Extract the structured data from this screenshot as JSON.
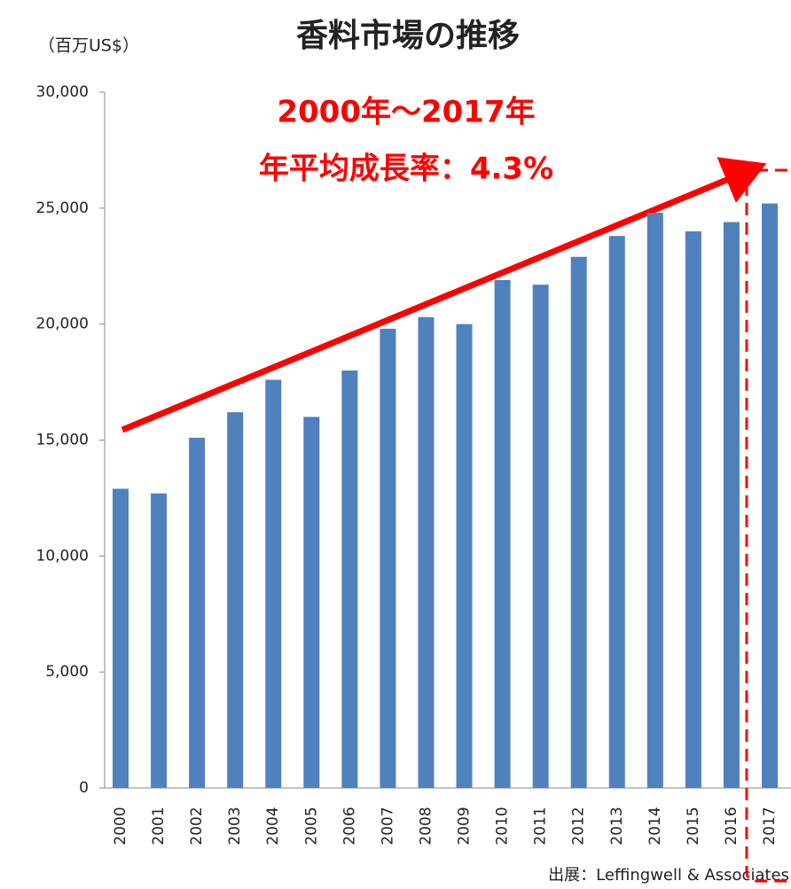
{
  "chart_data": {
    "type": "bar",
    "title": "香料市場の推移",
    "y_label": "（百万US$）",
    "annotations": [
      "2000年〜2017年",
      "年平均成長率：4.3%"
    ],
    "source": "出展：Leffingwell & Associates",
    "categories": [
      "2000",
      "2001",
      "2002",
      "2003",
      "2004",
      "2005",
      "2006",
      "2007",
      "2008",
      "2009",
      "2010",
      "2011",
      "2012",
      "2013",
      "2014",
      "2015",
      "2016",
      "2017"
    ],
    "values": [
      12900,
      12700,
      15100,
      16200,
      17600,
      16000,
      18000,
      19800,
      20300,
      20000,
      21900,
      21700,
      22900,
      23800,
      24800,
      24000,
      24400,
      25200
    ],
    "color": "#4f81bd",
    "ylim": [
      0,
      30000
    ],
    "yticks": [
      0,
      {
        "value": 5000,
        "label": "5,000"
      },
      {
        "value": 10000,
        "label": "10,000"
      },
      {
        "value": 15000,
        "label": "15,000"
      },
      {
        "value": 20000,
        "label": "20,000"
      },
      {
        "value": 25000,
        "label": "25,000"
      },
      {
        "value": 30000,
        "label": "30,000"
      }
    ],
    "grid": false
  }
}
